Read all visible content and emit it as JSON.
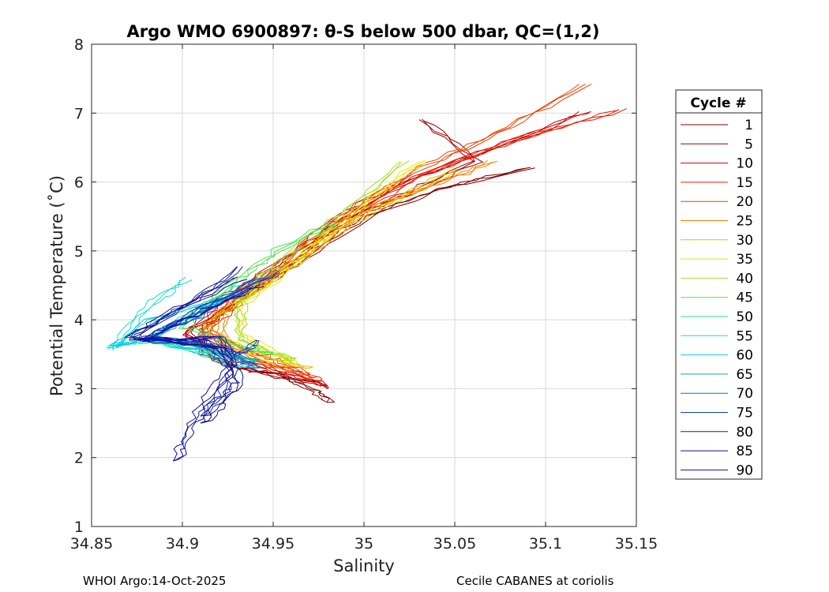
{
  "chart_data": {
    "type": "line",
    "title": "Argo WMO 6900897: θ-S below 500 dbar,  QC=(1,2)",
    "xlabel": "Salinity",
    "ylabel": "Potential Temperature (˚C)",
    "xlim": [
      34.85,
      35.15
    ],
    "ylim": [
      1,
      8
    ],
    "xticks": [
      "34.85",
      "34.9",
      "34.95",
      "35",
      "35.05",
      "35.1",
      "35.15"
    ],
    "yticks": [
      "1",
      "2",
      "3",
      "4",
      "5",
      "6",
      "7",
      "8"
    ],
    "grid": true,
    "legend": {
      "title": "Cycle #",
      "placement": "right",
      "entries": [
        {
          "label": "1",
          "color": "#800000"
        },
        {
          "label": "5",
          "color": "#a00000"
        },
        {
          "label": "10",
          "color": "#cc0000"
        },
        {
          "label": "15",
          "color": "#e62000"
        },
        {
          "label": "20",
          "color": "#f04000"
        },
        {
          "label": "25",
          "color": "#f08000"
        },
        {
          "label": "30",
          "color": "#e0c000"
        },
        {
          "label": "35",
          "color": "#e8e800"
        },
        {
          "label": "40",
          "color": "#a0e020"
        },
        {
          "label": "45",
          "color": "#50e050"
        },
        {
          "label": "50",
          "color": "#20e090"
        },
        {
          "label": "55",
          "color": "#10e0d0"
        },
        {
          "label": "60",
          "color": "#10c8e8"
        },
        {
          "label": "65",
          "color": "#10a0c0"
        },
        {
          "label": "70",
          "color": "#1070c0"
        },
        {
          "label": "75",
          "color": "#1040c0"
        },
        {
          "label": "80",
          "color": "#1020a0"
        },
        {
          "label": "85",
          "color": "#101080"
        },
        {
          "label": "90",
          "color": "#1010a8"
        }
      ]
    },
    "series": [
      {
        "name": "1",
        "s": [
          35.09,
          35.04,
          35.0,
          34.96,
          34.93,
          34.91,
          34.91,
          34.93,
          34.95,
          34.97,
          34.98
        ],
        "t": [
          6.2,
          5.9,
          5.5,
          4.8,
          4.3,
          3.9,
          3.5,
          3.3,
          3.2,
          3.0,
          2.8
        ]
      },
      {
        "name": "5",
        "s": [
          35.03,
          35.06,
          35.02,
          34.99,
          34.96,
          34.93,
          34.9,
          34.92,
          34.95,
          34.98
        ],
        "t": [
          6.9,
          6.3,
          5.8,
          5.5,
          4.9,
          4.3,
          3.8,
          3.35,
          3.2,
          3.05
        ]
      },
      {
        "name": "10",
        "s": [
          35.12,
          35.07,
          35.02,
          34.98,
          34.95,
          34.92,
          34.9,
          34.93,
          34.96,
          34.98
        ],
        "t": [
          7.0,
          6.5,
          6.0,
          5.4,
          4.8,
          4.3,
          3.8,
          3.4,
          3.2,
          3.0
        ]
      },
      {
        "name": "15",
        "s": [
          35.14,
          35.08,
          35.03,
          34.99,
          34.96,
          34.93,
          34.91,
          34.93,
          34.96,
          34.975
        ],
        "t": [
          7.05,
          6.6,
          6.1,
          5.5,
          4.9,
          4.3,
          3.8,
          3.45,
          3.25,
          3.1
        ]
      },
      {
        "name": "20",
        "s": [
          35.12,
          35.07,
          35.03,
          34.99,
          34.96,
          34.93,
          34.91,
          34.94,
          34.96,
          34.97
        ],
        "t": [
          7.4,
          6.7,
          6.2,
          5.6,
          5.0,
          4.4,
          3.85,
          3.5,
          3.3,
          3.15
        ]
      },
      {
        "name": "25",
        "s": [
          35.07,
          35.04,
          35.0,
          34.97,
          34.94,
          34.92,
          34.92,
          34.94,
          34.96
        ],
        "t": [
          6.3,
          6.0,
          5.6,
          5.0,
          4.5,
          4.1,
          3.7,
          3.4,
          3.25
        ]
      },
      {
        "name": "30",
        "s": [
          35.05,
          35.02,
          34.99,
          34.96,
          34.93,
          34.91,
          34.93,
          34.95,
          34.97
        ],
        "t": [
          6.2,
          5.8,
          5.4,
          4.8,
          4.3,
          3.9,
          3.6,
          3.4,
          3.3
        ]
      },
      {
        "name": "35",
        "s": [
          35.03,
          35.0,
          34.97,
          34.95,
          34.93,
          34.93,
          34.95,
          34.96
        ],
        "t": [
          6.3,
          5.7,
          5.1,
          4.6,
          4.2,
          3.8,
          3.5,
          3.35
        ]
      },
      {
        "name": "40",
        "s": [
          35.02,
          34.99,
          34.96,
          34.94,
          34.93,
          34.93,
          34.95,
          34.96
        ],
        "t": [
          6.3,
          5.6,
          5.0,
          4.6,
          4.2,
          3.7,
          3.5,
          3.4
        ]
      },
      {
        "name": "45",
        "s": [
          34.98,
          34.95,
          34.93,
          34.91,
          34.9,
          34.93,
          34.95
        ],
        "t": [
          5.4,
          5.0,
          4.6,
          4.2,
          3.9,
          3.6,
          3.5
        ]
      },
      {
        "name": "50",
        "s": [
          34.93,
          34.91,
          34.89,
          34.88,
          34.92,
          34.94
        ],
        "t": [
          4.5,
          4.2,
          3.9,
          3.7,
          3.5,
          3.4
        ]
      },
      {
        "name": "55",
        "s": [
          34.9,
          34.88,
          34.86,
          34.88,
          34.91,
          34.93
        ],
        "t": [
          4.6,
          4.2,
          3.6,
          3.7,
          3.5,
          3.3
        ]
      },
      {
        "name": "60",
        "s": [
          34.92,
          34.88,
          34.858,
          34.88,
          34.92,
          34.94
        ],
        "t": [
          4.3,
          4.0,
          3.58,
          3.75,
          3.5,
          3.3
        ]
      },
      {
        "name": "65",
        "s": [
          34.93,
          34.9,
          34.88,
          34.91,
          34.93,
          34.94
        ],
        "t": [
          4.4,
          4.0,
          3.75,
          3.6,
          3.45,
          3.4
        ]
      },
      {
        "name": "70",
        "s": [
          34.94,
          34.91,
          34.88,
          34.92,
          34.93,
          34.94
        ],
        "t": [
          4.6,
          4.1,
          3.75,
          3.6,
          3.4,
          3.3
        ]
      },
      {
        "name": "75",
        "s": [
          34.95,
          34.91,
          34.88,
          34.92,
          34.93,
          34.94
        ],
        "t": [
          4.7,
          4.2,
          3.75,
          3.6,
          3.5,
          3.7
        ]
      },
      {
        "name": "80",
        "s": [
          34.93,
          34.9,
          34.87,
          34.91,
          34.925,
          34.92,
          34.91
        ],
        "t": [
          4.75,
          4.2,
          3.75,
          3.7,
          3.3,
          2.9,
          2.6
        ]
      },
      {
        "name": "85",
        "s": [
          34.93,
          34.89,
          34.87,
          34.92,
          34.93,
          34.92,
          34.91
        ],
        "t": [
          4.6,
          4.1,
          3.72,
          3.6,
          3.1,
          2.8,
          2.5
        ]
      },
      {
        "name": "90",
        "s": [
          34.94,
          34.9,
          34.875,
          34.92,
          34.925,
          34.91,
          34.9,
          34.895
        ],
        "t": [
          4.5,
          4.0,
          3.7,
          3.75,
          3.3,
          2.8,
          2.3,
          1.95
        ]
      }
    ]
  },
  "footer": {
    "left": "WHOI Argo:14-Oct-2025",
    "right": "Cecile CABANES at coriolis"
  }
}
